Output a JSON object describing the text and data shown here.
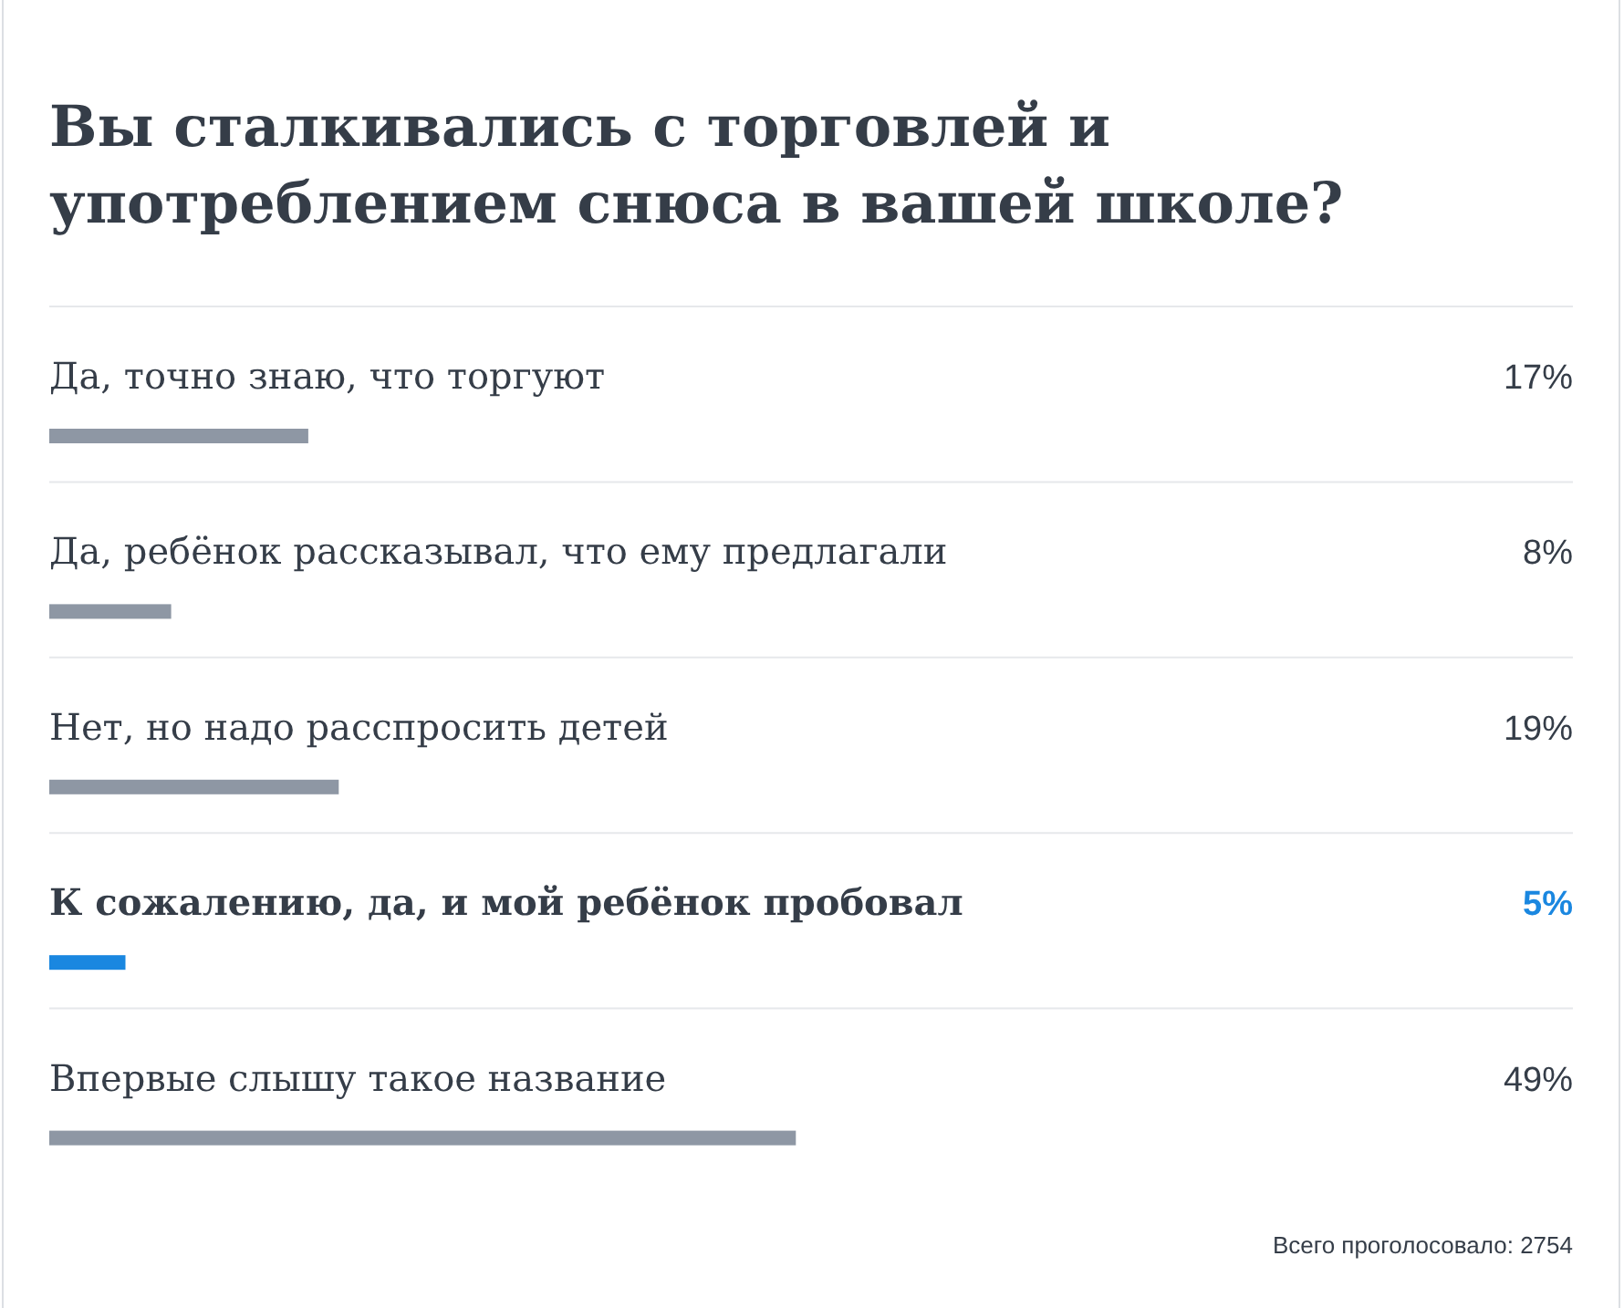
{
  "chart_data": {
    "type": "bar",
    "orientation": "horizontal",
    "title": "Вы сталкивались с торговлей и употреблением снюса в вашей школе?",
    "categories": [
      "Да, точно знаю, что торгуют",
      "Да, ребёнок рассказывал, что ему предлагали",
      "Нет, но надо расспросить детей",
      "К сожалению, да, и мой ребёнок пробовал",
      "Впервые слышу такое название"
    ],
    "values": [
      17,
      8,
      19,
      5,
      49
    ],
    "value_labels": [
      "17%",
      "8%",
      "19%",
      "5%",
      "49%"
    ],
    "color": "#8e97a4",
    "colors": [
      "#8e97a4",
      "#8e97a4",
      "#8e97a4",
      "#1a87e0",
      "#8e97a4"
    ],
    "xlim": [
      0,
      100
    ],
    "annotations": [
      "Всего проголосовало: 2754"
    ]
  }
}
